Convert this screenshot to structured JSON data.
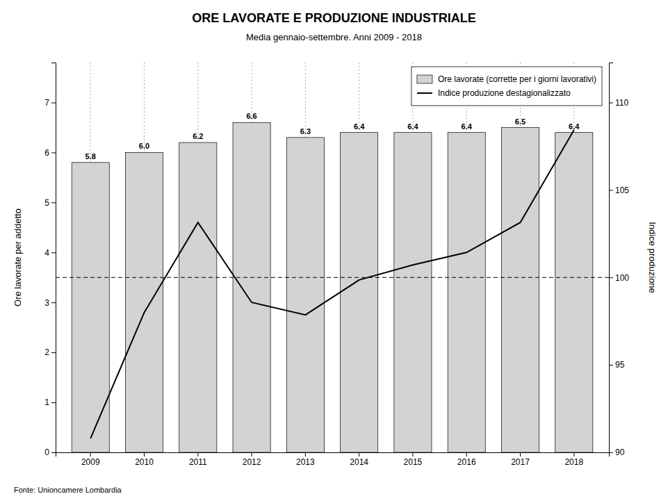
{
  "chart_data": {
    "type": "bar",
    "title": "ORE LAVORATE E PRODUZIONE INDUSTRIALE",
    "subtitle": "Media gennaio-settembre. Anni 2009 - 2018",
    "source": "Fonte: Unioncamere Lombardia",
    "categories": [
      "2009",
      "2010",
      "2011",
      "2012",
      "2013",
      "2014",
      "2015",
      "2016",
      "2017",
      "2018"
    ],
    "series": [
      {
        "name": "Ore lavorate (corrette per i giorni lavorativi)",
        "type": "bar",
        "color": "#d3d3d3",
        "values": [
          5.8,
          6.0,
          6.2,
          6.6,
          6.3,
          6.4,
          6.4,
          6.4,
          6.5,
          6.4
        ],
        "value_labels": [
          "5.8",
          "6.0",
          "6.2",
          "6.6",
          "6.3",
          "6.4",
          "6.4",
          "6.4",
          "6.5",
          "6.4"
        ],
        "data_labels": true
      },
      {
        "name": "Indice produzione destagionalizzato",
        "type": "line",
        "color": "#000000",
        "values": [
          0.28,
          2.8,
          4.6,
          3.0,
          2.75,
          3.45,
          3.75,
          4.0,
          4.6,
          6.45
        ]
      }
    ],
    "ylabel": "Ore lavorate per addetto",
    "y2label": "Indice produzione",
    "ylim": [
      0,
      7.8
    ],
    "yticks": [
      0,
      1,
      2,
      3,
      4,
      5,
      6,
      7
    ],
    "y2lim": [
      90,
      112.286
    ],
    "y2ticks": [
      90,
      95,
      100,
      105,
      110
    ],
    "hline": 3.5,
    "grid": "x",
    "legend": "upper right"
  }
}
